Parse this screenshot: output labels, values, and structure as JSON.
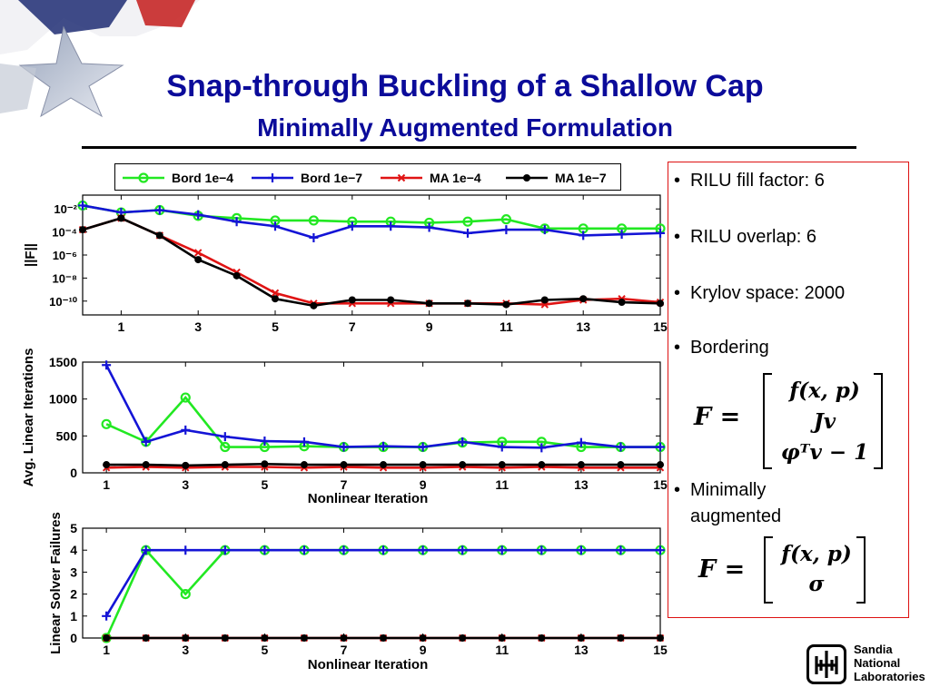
{
  "slide": {
    "title": "Snap-through Buckling of a Shallow Cap",
    "subtitle": "Minimally Augmented Formulation"
  },
  "sidebar": {
    "bullets": [
      "RILU fill factor:  6",
      "RILU overlap: 6",
      "Krylov space:  2000",
      "Bordering",
      "Minimally augmented"
    ],
    "formula_bordering": {
      "lhs": "F =",
      "rows": [
        "f(x, p)",
        "Jv",
        "φᵀv − 1"
      ]
    },
    "formula_ma": {
      "lhs": "F =",
      "rows": [
        "f(x, p)",
        "σ"
      ]
    }
  },
  "logo": {
    "name_lines": [
      "Sandia",
      "National",
      "Laboratories"
    ]
  },
  "colors": {
    "bord_1e4": "#22e822",
    "bord_1e7": "#1414d6",
    "ma_1e4": "#e01414",
    "ma_1e7": "#000000",
    "title": "#0b0b9a"
  },
  "chart_data": [
    {
      "type": "line",
      "ylabel": "||F||",
      "xlabel": "",
      "yscale": "log",
      "xlim": [
        0,
        15
      ],
      "xticks": [
        1,
        3,
        5,
        7,
        9,
        11,
        13,
        15
      ],
      "ytick_labels": [
        "10⁻²",
        "10⁻⁴",
        "10⁻⁶",
        "10⁻⁸",
        "10⁻¹⁰"
      ],
      "ytick_values": [
        -2,
        -4,
        -6,
        -8,
        -10
      ],
      "ylim_log10": [
        -11.2,
        -0.8
      ],
      "legend": [
        "Bord 1e−4",
        "Bord 1e−7",
        "MA 1e−4",
        "MA 1e−7"
      ],
      "legend_position": "top",
      "series": [
        {
          "name": "Bord 1e−4",
          "color": "#22e822",
          "marker": "circle",
          "x": [
            0,
            1,
            2,
            3,
            4,
            5,
            6,
            7,
            8,
            9,
            10,
            11,
            12,
            13,
            14,
            15
          ],
          "log10_y": [
            -1.7,
            -2.3,
            -2.1,
            -2.6,
            -2.8,
            -3.0,
            -3.0,
            -3.1,
            -3.1,
            -3.2,
            -3.1,
            -2.9,
            -3.7,
            -3.7,
            -3.7,
            -3.7
          ]
        },
        {
          "name": "Bord 1e−7",
          "color": "#1414d6",
          "marker": "plus",
          "x": [
            0,
            1,
            2,
            3,
            4,
            5,
            6,
            7,
            8,
            9,
            10,
            11,
            12,
            13,
            14,
            15
          ],
          "log10_y": [
            -1.7,
            -2.3,
            -2.1,
            -2.5,
            -3.1,
            -3.5,
            -4.5,
            -3.5,
            -3.5,
            -3.6,
            -4.1,
            -3.8,
            -3.8,
            -4.3,
            -4.2,
            -4.1
          ]
        },
        {
          "name": "MA 1e−4",
          "color": "#e01414",
          "marker": "x",
          "x": [
            0,
            1,
            2,
            3,
            4,
            5,
            6,
            7,
            8,
            9,
            10,
            11,
            12,
            13,
            14,
            15
          ],
          "log10_y": [
            -3.8,
            -2.8,
            -4.3,
            -5.8,
            -7.5,
            -9.3,
            -10.2,
            -10.2,
            -10.2,
            -10.2,
            -10.2,
            -10.2,
            -10.3,
            -9.9,
            -9.8,
            -10.1
          ]
        },
        {
          "name": "MA 1e−7",
          "color": "#000000",
          "marker": "dot",
          "x": [
            0,
            1,
            2,
            3,
            4,
            5,
            6,
            7,
            8,
            9,
            10,
            11,
            12,
            13,
            14,
            15
          ],
          "log10_y": [
            -3.8,
            -2.8,
            -4.3,
            -6.4,
            -7.8,
            -9.8,
            -10.4,
            -9.9,
            -9.9,
            -10.2,
            -10.2,
            -10.3,
            -9.9,
            -9.8,
            -10.1,
            -10.2
          ]
        }
      ]
    },
    {
      "type": "line",
      "ylabel": "Avg. Linear Iterations",
      "xlabel": "Nonlinear Iteration",
      "xlim": [
        0.4,
        15
      ],
      "ylim": [
        0,
        1500
      ],
      "xticks": [
        1,
        3,
        5,
        7,
        9,
        11,
        13,
        15
      ],
      "yticks": [
        0,
        500,
        1000,
        1500
      ],
      "series": [
        {
          "name": "Bord 1e−4",
          "color": "#22e822",
          "marker": "circle",
          "x": [
            1,
            2,
            3,
            4,
            5,
            6,
            7,
            8,
            9,
            10,
            11,
            12,
            13,
            14,
            15
          ],
          "y": [
            660,
            420,
            1020,
            350,
            350,
            360,
            350,
            350,
            350,
            410,
            420,
            420,
            350,
            350,
            350
          ]
        },
        {
          "name": "Bord 1e−7",
          "color": "#1414d6",
          "marker": "plus",
          "x": [
            1,
            2,
            3,
            4,
            5,
            6,
            7,
            8,
            9,
            10,
            11,
            12,
            13,
            14,
            15
          ],
          "y": [
            1460,
            420,
            580,
            490,
            430,
            420,
            350,
            360,
            350,
            420,
            350,
            340,
            410,
            350,
            350
          ]
        },
        {
          "name": "MA 1e−4",
          "color": "#e01414",
          "marker": "x",
          "x": [
            1,
            2,
            3,
            4,
            5,
            6,
            7,
            8,
            9,
            10,
            11,
            12,
            13,
            14,
            15
          ],
          "y": [
            70,
            80,
            70,
            80,
            80,
            70,
            80,
            70,
            70,
            80,
            70,
            80,
            70,
            70,
            70
          ]
        },
        {
          "name": "MA 1e−7",
          "color": "#000000",
          "marker": "dot",
          "x": [
            1,
            2,
            3,
            4,
            5,
            6,
            7,
            8,
            9,
            10,
            11,
            12,
            13,
            14,
            15
          ],
          "y": [
            110,
            110,
            100,
            110,
            120,
            110,
            110,
            110,
            110,
            110,
            110,
            110,
            110,
            110,
            110
          ]
        }
      ]
    },
    {
      "type": "line",
      "ylabel": "Linear Solver Failures",
      "xlabel": "Nonlinear Iteration",
      "xlim": [
        0.4,
        15
      ],
      "ylim": [
        0,
        5
      ],
      "xticks": [
        1,
        3,
        5,
        7,
        9,
        11,
        13,
        15
      ],
      "yticks": [
        0,
        1,
        2,
        3,
        4,
        5
      ],
      "series": [
        {
          "name": "Bord 1e−4",
          "color": "#22e822",
          "marker": "circle",
          "x": [
            1,
            2,
            3,
            4,
            5,
            6,
            7,
            8,
            9,
            10,
            11,
            12,
            13,
            14,
            15
          ],
          "y": [
            0,
            4,
            2,
            4,
            4,
            4,
            4,
            4,
            4,
            4,
            4,
            4,
            4,
            4,
            4
          ]
        },
        {
          "name": "Bord 1e−7",
          "color": "#1414d6",
          "marker": "plus",
          "x": [
            1,
            2,
            3,
            4,
            5,
            6,
            7,
            8,
            9,
            10,
            11,
            12,
            13,
            14,
            15
          ],
          "y": [
            1,
            4,
            4,
            4,
            4,
            4,
            4,
            4,
            4,
            4,
            4,
            4,
            4,
            4,
            4
          ]
        },
        {
          "name": "MA 1e−4",
          "color": "#e01414",
          "marker": "x",
          "x": [
            1,
            2,
            3,
            4,
            5,
            6,
            7,
            8,
            9,
            10,
            11,
            12,
            13,
            14,
            15
          ],
          "y": [
            0,
            0,
            0,
            0,
            0,
            0,
            0,
            0,
            0,
            0,
            0,
            0,
            0,
            0,
            0
          ]
        },
        {
          "name": "MA 1e−7",
          "color": "#000000",
          "marker": "dot",
          "x": [
            1,
            2,
            3,
            4,
            5,
            6,
            7,
            8,
            9,
            10,
            11,
            12,
            13,
            14,
            15
          ],
          "y": [
            0,
            0,
            0,
            0,
            0,
            0,
            0,
            0,
            0,
            0,
            0,
            0,
            0,
            0,
            0
          ]
        }
      ]
    }
  ]
}
